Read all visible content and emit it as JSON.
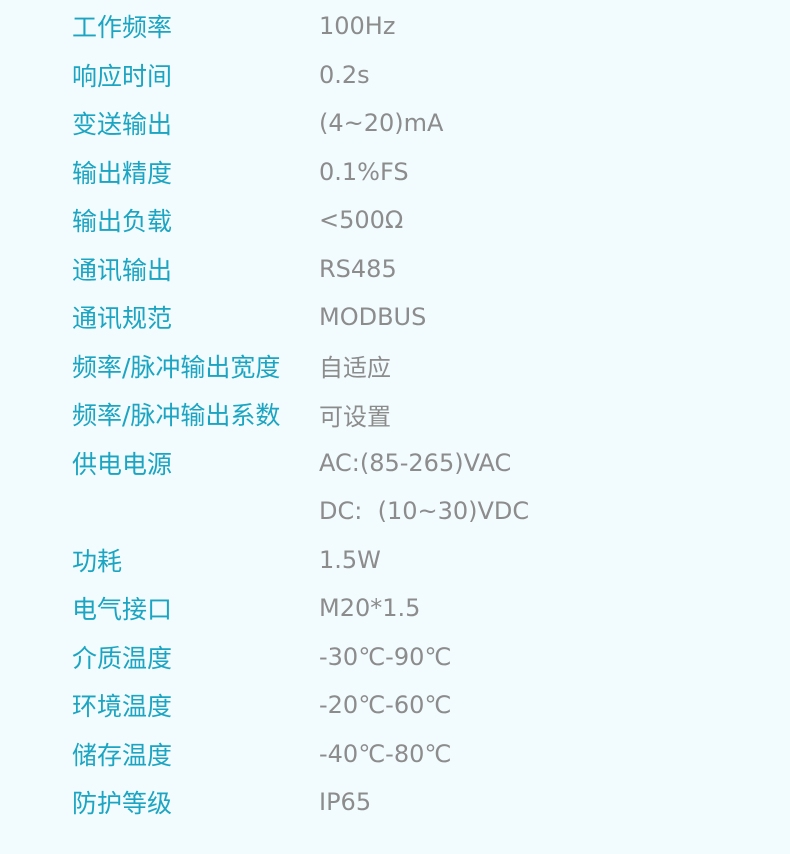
{
  "colors": {
    "label": "#1ba5c2",
    "value": "#8c8c8c",
    "background": "#f2fbfd"
  },
  "specs": [
    {
      "label": "工作频率",
      "value": "100Hz"
    },
    {
      "label": "响应时间",
      "value": "0.2s"
    },
    {
      "label": "变送输出",
      "value": "(4~20)mA"
    },
    {
      "label": "输出精度",
      "value": "0.1%FS"
    },
    {
      "label": "输出负载",
      "value": "<500Ω"
    },
    {
      "label": "通讯输出",
      "value": "RS485"
    },
    {
      "label": "通讯规范",
      "value": "MODBUS"
    },
    {
      "label": "频率/脉冲输出宽度",
      "value": "自适应"
    },
    {
      "label": "频率/脉冲输出系数",
      "value": "可设置"
    },
    {
      "label": "供电电源",
      "value": "AC:(85-265)VAC"
    },
    {
      "label": "",
      "value": "DC:  (10~30)VDC"
    },
    {
      "label": "功耗",
      "value": "1.5W"
    },
    {
      "label": "电气接口",
      "value": "M20*1.5"
    },
    {
      "label": "介质温度",
      "value": "-30℃-90℃"
    },
    {
      "label": "环境温度",
      "value": "-20℃-60℃"
    },
    {
      "label": "储存温度",
      "value": "-40℃-80℃"
    },
    {
      "label": "防护等级",
      "value": "IP65"
    }
  ]
}
